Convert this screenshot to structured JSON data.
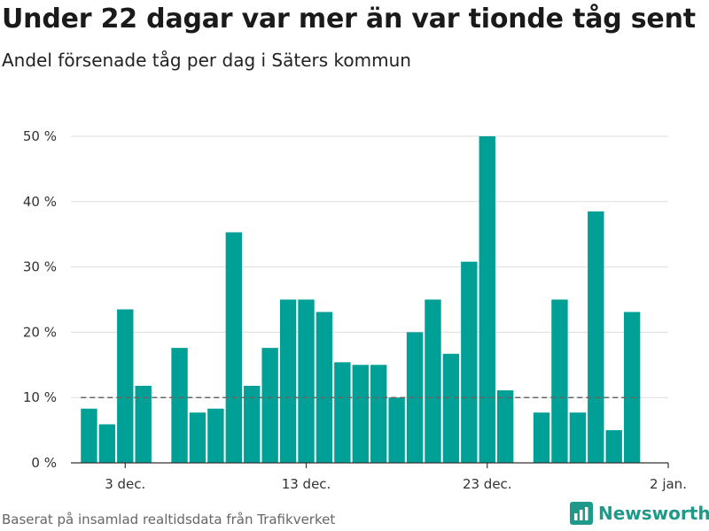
{
  "header": {
    "title": "Under 22 dagar var mer än var tionde tåg sent",
    "subtitle": "Andel försenade tåg per dag i Säters kommun"
  },
  "footer": {
    "source": "Baserat på insamlad realtidsdata från Trafikverket",
    "brand": "Newsworthy"
  },
  "colors": {
    "bar": "#00a096",
    "reference_line": "#666666",
    "grid": "#dddddd",
    "brand": "#1f9a8a"
  },
  "chart_data": {
    "type": "bar",
    "title": "Under 22 dagar var mer än var tionde tåg sent",
    "subtitle": "Andel försenade tåg per dag i Säters kommun",
    "x_axis": {
      "type": "date",
      "range": [
        "2019-11-30",
        "2020-01-02"
      ],
      "ticks": [
        {
          "date": "2019-12-03",
          "label": "3 dec."
        },
        {
          "date": "2019-12-13",
          "label": "13 dec."
        },
        {
          "date": "2019-12-23",
          "label": "23 dec."
        },
        {
          "date": "2020-01-02",
          "label": "2 jan."
        }
      ]
    },
    "y_axis": {
      "min": 0,
      "max": 50,
      "ticks": [
        {
          "value": 0,
          "label": "0 %"
        },
        {
          "value": 10,
          "label": "10 %"
        },
        {
          "value": 20,
          "label": "20 %"
        },
        {
          "value": 30,
          "label": "30 %"
        },
        {
          "value": 40,
          "label": "40 %"
        },
        {
          "value": 50,
          "label": "50 %"
        }
      ],
      "grid": true
    },
    "reference_line": {
      "value": 10,
      "style": "dashed"
    },
    "series": [
      {
        "points": [
          {
            "date": "2019-12-01",
            "value": 8.3
          },
          {
            "date": "2019-12-02",
            "value": 5.9
          },
          {
            "date": "2019-12-03",
            "value": 23.5
          },
          {
            "date": "2019-12-04",
            "value": 11.8
          },
          {
            "date": "2019-12-06",
            "value": 17.6
          },
          {
            "date": "2019-12-07",
            "value": 7.7
          },
          {
            "date": "2019-12-08",
            "value": 8.3
          },
          {
            "date": "2019-12-09",
            "value": 35.3
          },
          {
            "date": "2019-12-10",
            "value": 11.8
          },
          {
            "date": "2019-12-11",
            "value": 17.6
          },
          {
            "date": "2019-12-12",
            "value": 25.0
          },
          {
            "date": "2019-12-13",
            "value": 25.0
          },
          {
            "date": "2019-12-14",
            "value": 23.1
          },
          {
            "date": "2019-12-15",
            "value": 15.4
          },
          {
            "date": "2019-12-16",
            "value": 15.0
          },
          {
            "date": "2019-12-17",
            "value": 15.0
          },
          {
            "date": "2019-12-18",
            "value": 10.0
          },
          {
            "date": "2019-12-19",
            "value": 20.0
          },
          {
            "date": "2019-12-20",
            "value": 25.0
          },
          {
            "date": "2019-12-21",
            "value": 16.7
          },
          {
            "date": "2019-12-22",
            "value": 30.8
          },
          {
            "date": "2019-12-23",
            "value": 50.0
          },
          {
            "date": "2019-12-24",
            "value": 11.1
          },
          {
            "date": "2019-12-26",
            "value": 7.7
          },
          {
            "date": "2019-12-27",
            "value": 25.0
          },
          {
            "date": "2019-12-28",
            "value": 7.7
          },
          {
            "date": "2019-12-29",
            "value": 38.5
          },
          {
            "date": "2019-12-30",
            "value": 5.0
          },
          {
            "date": "2019-12-31",
            "value": 23.1
          }
        ]
      }
    ]
  }
}
